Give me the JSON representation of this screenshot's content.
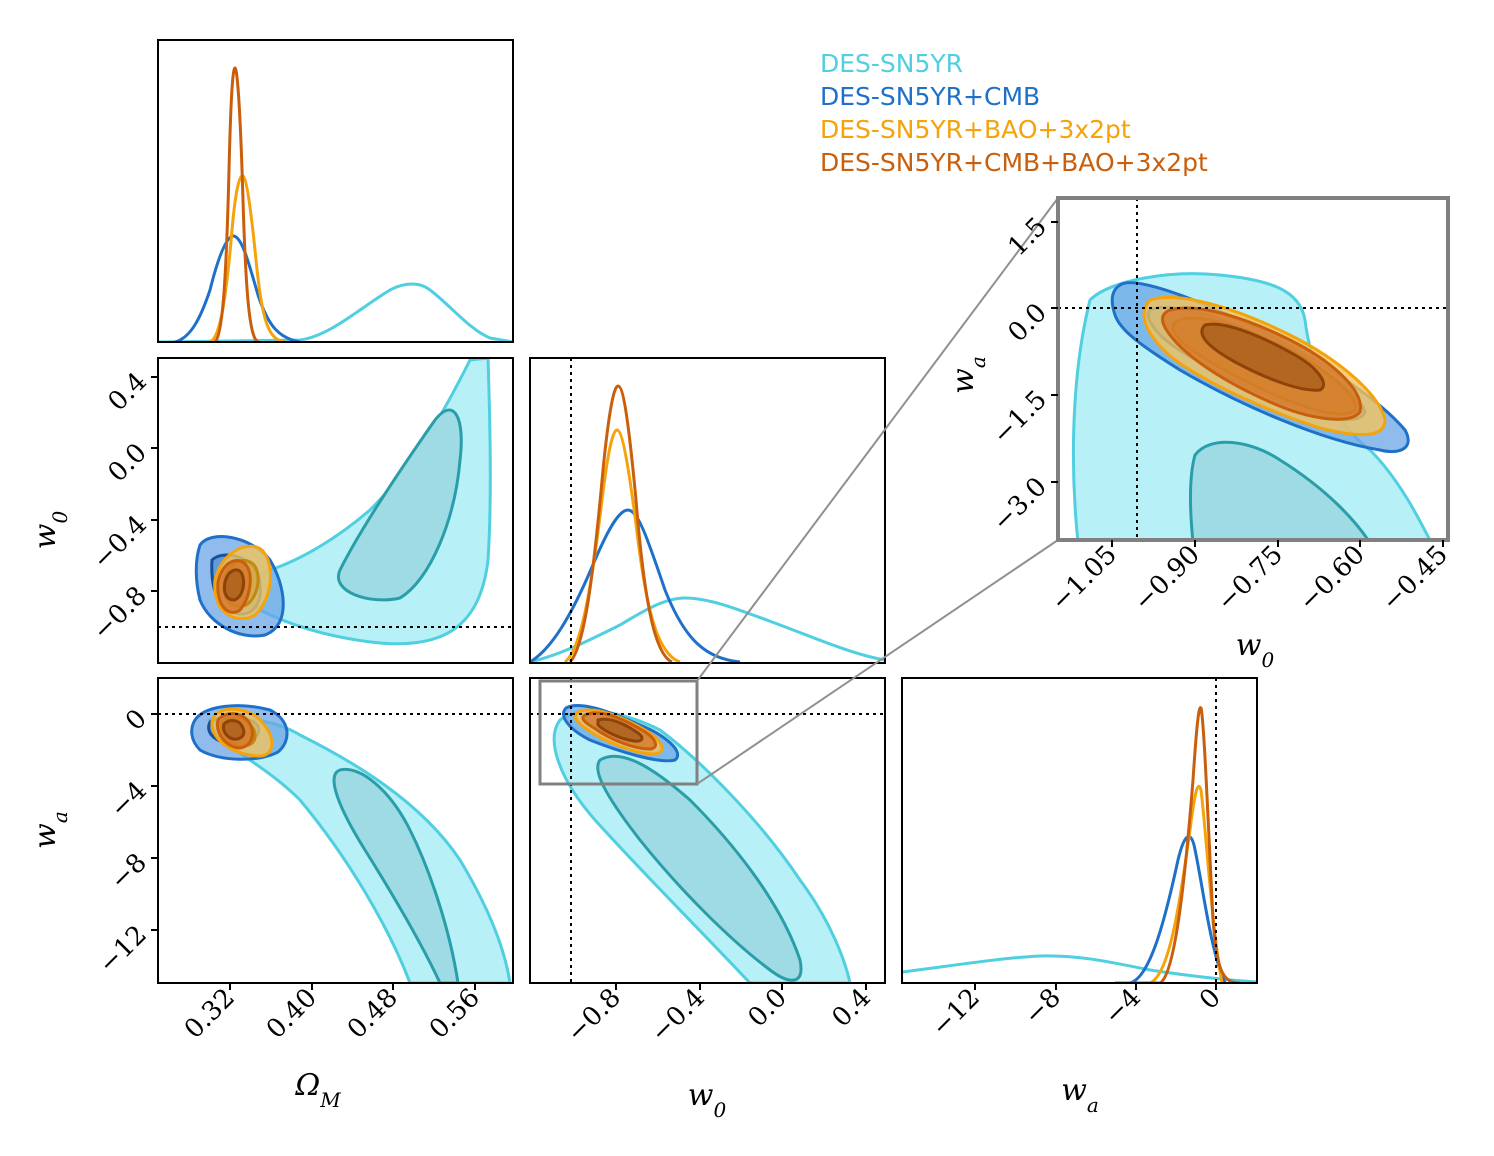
{
  "legend": {
    "items": [
      {
        "label": "DES-SN5YR",
        "color": "#4fcfe0"
      },
      {
        "label": "DES-SN5YR+CMB",
        "color": "#1f70c9"
      },
      {
        "label": "DES-SN5YR+BAO+3x2pt",
        "color": "#f5a30a"
      },
      {
        "label": "DES-SN5YR+CMB+BAO+3x2pt",
        "color": "#c95f0c"
      }
    ]
  },
  "axes_labels": {
    "om_x": "Ω_M",
    "w0_x": "w_0",
    "wa_x": "w_a",
    "w0_y": "w_0",
    "wa_y": "w_a",
    "inset_x": "w_0",
    "inset_y": "w_a"
  },
  "chart_data": {
    "type": "corner",
    "parameters": [
      "Omega_M",
      "w_0",
      "w_a"
    ],
    "reference_values": {
      "w_0": -1.0,
      "w_a": 0.0
    },
    "ranges": {
      "Omega_M": [
        0.25,
        0.6
      ],
      "w_0": [
        -1.2,
        0.5
      ],
      "w_a": [
        -15,
        2
      ]
    },
    "ticks": {
      "Omega_M": [
        "0.32",
        "0.40",
        "0.48",
        "0.56"
      ],
      "w_0_row": [
        "0.4",
        "0.0",
        "−0.4",
        "−0.8"
      ],
      "w_0_col": [
        "−0.8",
        "−0.4",
        "0.0",
        "0.4"
      ],
      "w_a_row": [
        "0",
        "−4",
        "−8",
        "−12"
      ],
      "w_a_col": [
        "−12",
        "−8",
        "−4",
        "0"
      ],
      "inset_w0": [
        "−1.05",
        "−0.90",
        "−0.75",
        "−0.60",
        "−0.45"
      ],
      "inset_wa": [
        "1.5",
        "0.0",
        "−1.5",
        "−3.0"
      ]
    },
    "series": [
      {
        "name": "DES-SN5YR",
        "Omega_M": {
          "mean": 0.495,
          "sd": 0.045
        },
        "w_0": {
          "mean": -0.45,
          "sd": 0.35
        },
        "w_a": {
          "mean": -7.8,
          "sd": 4.5
        }
      },
      {
        "name": "DES-SN5YR+CMB",
        "Omega_M": {
          "mean": 0.322,
          "sd": 0.018
        },
        "w_0": {
          "mean": -0.75,
          "sd": 0.14
        },
        "w_a": {
          "mean": -1.3,
          "sd": 0.75
        }
      },
      {
        "name": "DES-SN5YR+BAO+3x2pt",
        "Omega_M": {
          "mean": 0.328,
          "sd": 0.0105
        },
        "w_0": {
          "mean": -0.78,
          "sd": 0.082
        },
        "w_a": {
          "mean": -0.98,
          "sd": 0.5
        }
      },
      {
        "name": "DES-SN5YR+CMB+BAO+3x2pt",
        "Omega_M": {
          "mean": 0.322,
          "sd": 0.0075
        },
        "w_0": {
          "mean": -0.78,
          "sd": 0.07
        },
        "w_a": {
          "mean": -0.85,
          "sd": 0.4
        }
      }
    ],
    "inset": {
      "w_0_range": [
        -1.15,
        -0.4
      ],
      "w_a_range": [
        -4.0,
        2.0
      ]
    }
  }
}
